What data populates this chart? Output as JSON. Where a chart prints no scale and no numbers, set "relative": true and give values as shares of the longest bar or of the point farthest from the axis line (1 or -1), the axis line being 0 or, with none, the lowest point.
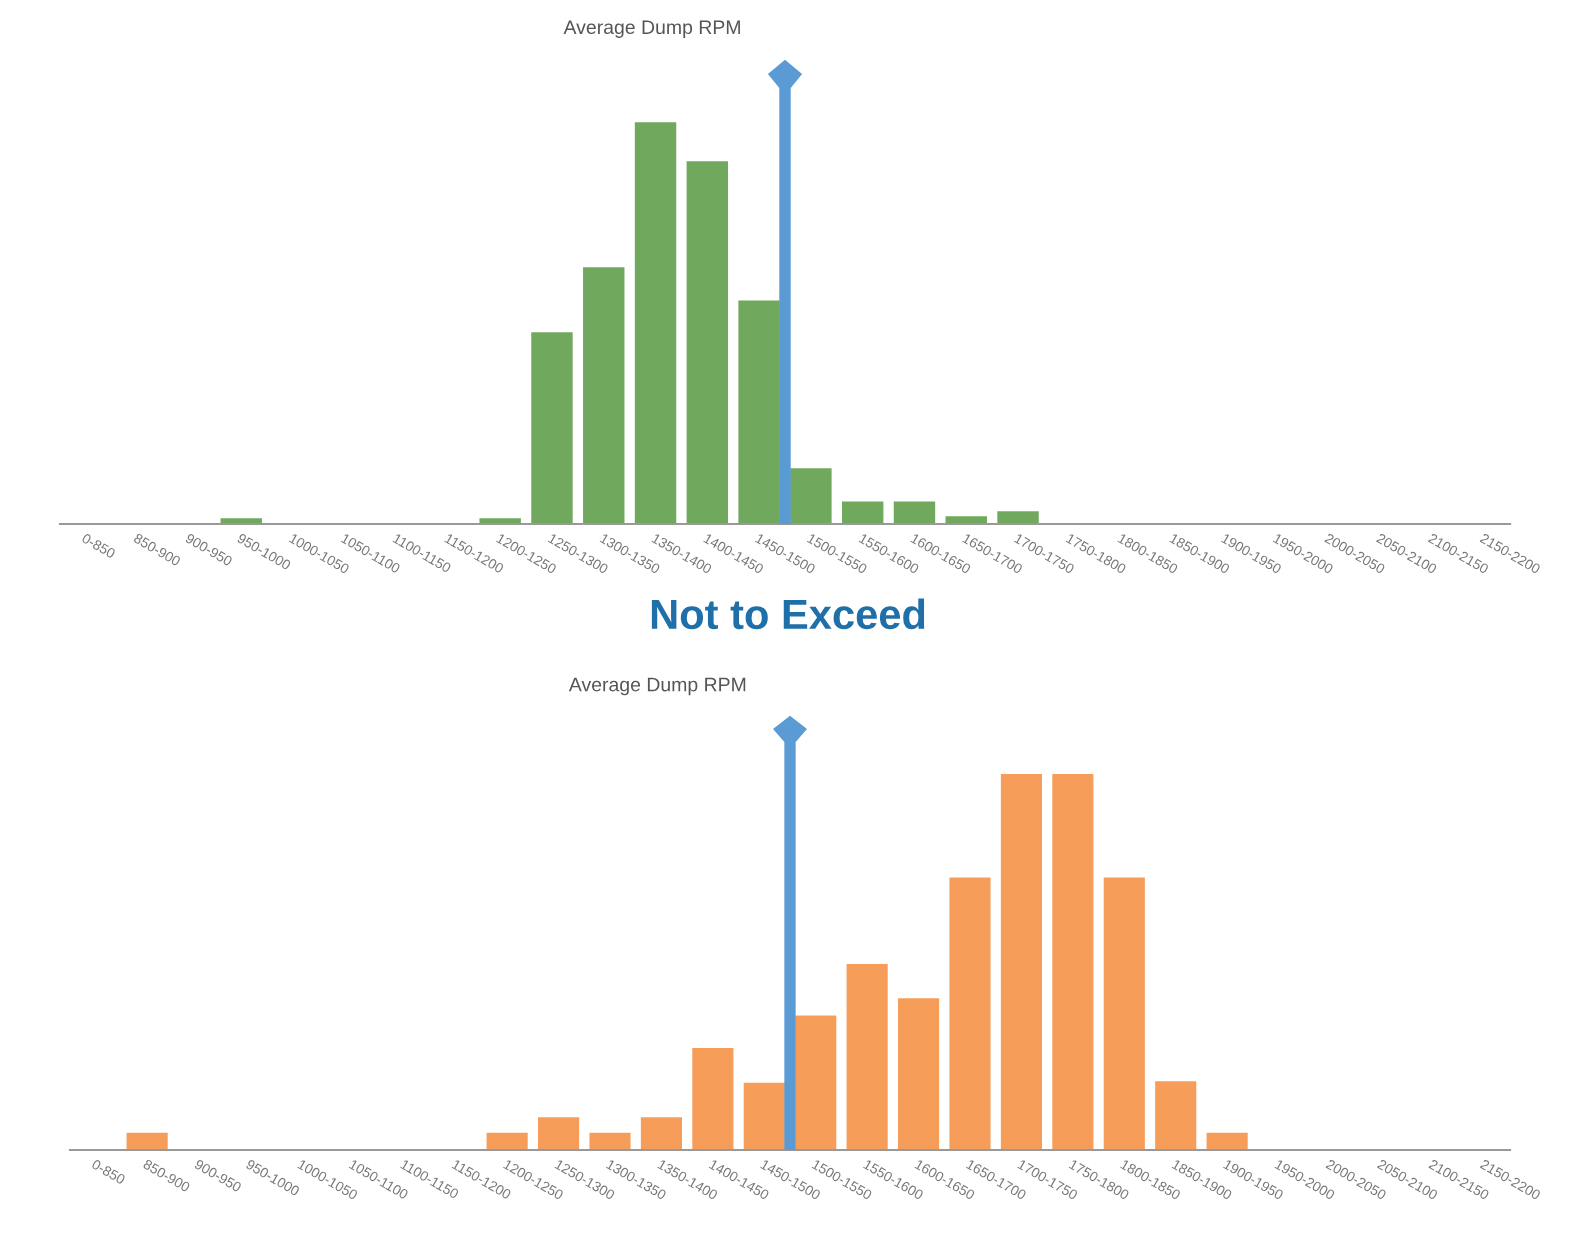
{
  "chart_data": [
    {
      "type": "bar",
      "title": "Average Dump RPM",
      "relative": true,
      "categories": [
        "0-850",
        "850-900",
        "900-950",
        "950-1000",
        "1000-1050",
        "1050-1100",
        "1100-1150",
        "1150-1200",
        "1200-1250",
        "1250-1300",
        "1300-1350",
        "1350-1400",
        "1400-1450",
        "1450-1500",
        "1500-1550",
        "1550-1600",
        "1600-1650",
        "1650-1700",
        "1700-1750",
        "1750-1800",
        "1800-1850",
        "1850-1900",
        "1900-1950",
        "1950-2000",
        "2000-2050",
        "2050-2100",
        "2100-2150",
        "2150-2200"
      ],
      "values": [
        0,
        0,
        0,
        0.014,
        0,
        0,
        0,
        0,
        0.014,
        0.477,
        0.639,
        1,
        0.903,
        0.556,
        0.139,
        0.056,
        0.056,
        0.019,
        0.032,
        0,
        0,
        0,
        0,
        0,
        0,
        0,
        0,
        0
      ],
      "color": "#70a95e",
      "annotations": [
        "Not to Exceed"
      ]
    },
    {
      "type": "bar",
      "title": "Average Dump RPM",
      "relative": true,
      "categories": [
        "0-850",
        "850-900",
        "900-950",
        "950-1000",
        "1000-1050",
        "1050-1100",
        "1100-1150",
        "1150-1200",
        "1200-1250",
        "1250-1300",
        "1300-1350",
        "1350-1400",
        "1400-1450",
        "1450-1500",
        "1500-1550",
        "1550-1600",
        "1600-1650",
        "1650-1700",
        "1700-1750",
        "1750-1800",
        "1800-1850",
        "1850-1900",
        "1900-1950",
        "1950-2000",
        "2000-2050",
        "2050-2100",
        "2100-2150",
        "2150-2200"
      ],
      "values": [
        0,
        0.046,
        0,
        0,
        0,
        0,
        0,
        0,
        0.046,
        0.087,
        0.046,
        0.087,
        0.271,
        0.179,
        0.358,
        0.495,
        0.404,
        0.725,
        1,
        1,
        0.725,
        0.183,
        0.046,
        0,
        0,
        0,
        0,
        0
      ],
      "color": "#f79d5a"
    }
  ]
}
